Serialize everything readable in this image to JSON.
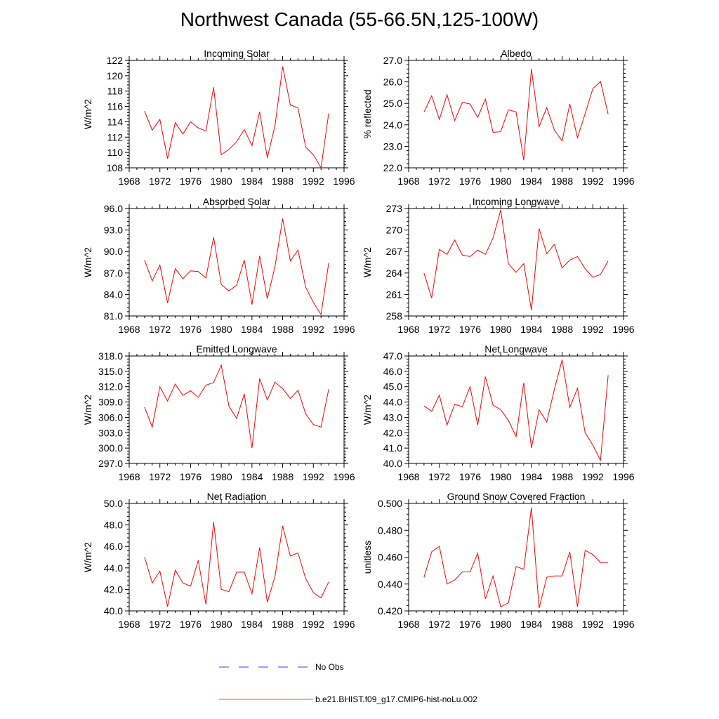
{
  "figure_title": "Northwest Canada (55-66.5N,125-100W)",
  "colors": {
    "model": "#ff0000",
    "obs": "#0000ff"
  },
  "legend": {
    "obs_label": "No Obs",
    "model_label": "b.e21.BHIST.f09_g17.CMIP6-hist-noLu.002"
  },
  "chart_data": [
    {
      "type": "line",
      "title": "Incoming Solar",
      "xlabel": "",
      "ylabel": "W/m^2",
      "xlim": [
        1968,
        1996
      ],
      "ylim": [
        108,
        122
      ],
      "yticks": [
        108,
        110,
        112,
        114,
        116,
        118,
        120,
        122
      ],
      "ytick_labels": [
        "108",
        "110",
        "112",
        "114",
        "116",
        "118",
        "120",
        "122"
      ],
      "xticks": [
        1968,
        1972,
        1976,
        1980,
        1984,
        1988,
        1992,
        1996
      ],
      "xtick_labels": [
        "1968",
        "1972",
        "1976",
        "1980",
        "1984",
        "1988",
        "1992",
        "1996"
      ],
      "x": [
        1970,
        1971,
        1972,
        1973,
        1974,
        1975,
        1976,
        1977,
        1978,
        1979,
        1980,
        1981,
        1982,
        1983,
        1984,
        1985,
        1986,
        1987,
        1988,
        1989,
        1990,
        1991,
        1992,
        1993,
        1994
      ],
      "series": [
        {
          "name": "b.e21.BHIST.f09_g17.CMIP6-hist-noLu.002",
          "values": [
            115.4,
            112.9,
            114.3,
            109.2,
            113.9,
            112.4,
            114.0,
            113.2,
            112.8,
            118.5,
            109.7,
            110.4,
            111.4,
            113.0,
            110.9,
            115.3,
            109.3,
            113.5,
            121.2,
            116.2,
            115.8,
            110.7,
            109.7,
            108.0,
            115.1
          ]
        }
      ]
    },
    {
      "type": "line",
      "title": "Albedo",
      "xlabel": "",
      "ylabel": "% reflected",
      "xlim": [
        1968,
        1996
      ],
      "ylim": [
        22,
        27
      ],
      "yticks": [
        22,
        23,
        24,
        25,
        26,
        27
      ],
      "ytick_labels": [
        "22.0",
        "23.0",
        "24.0",
        "25.0",
        "26.0",
        "27.0"
      ],
      "xticks": [
        1968,
        1972,
        1976,
        1980,
        1984,
        1988,
        1992,
        1996
      ],
      "xtick_labels": [
        "1968",
        "1972",
        "1976",
        "1980",
        "1984",
        "1988",
        "1992",
        "1996"
      ],
      "x": [
        1970,
        1971,
        1972,
        1973,
        1974,
        1975,
        1976,
        1977,
        1978,
        1979,
        1980,
        1981,
        1982,
        1983,
        1984,
        1985,
        1986,
        1987,
        1988,
        1989,
        1990,
        1991,
        1992,
        1993,
        1994
      ],
      "series": [
        {
          "name": "b.e21.BHIST.f09_g17.CMIP6-hist-noLu.002",
          "values": [
            24.6,
            25.35,
            24.25,
            25.4,
            24.2,
            25.05,
            24.97,
            24.35,
            25.2,
            23.65,
            23.68,
            24.7,
            24.6,
            22.35,
            26.6,
            23.92,
            24.8,
            23.75,
            23.25,
            24.97,
            23.4,
            24.52,
            25.68,
            26.02,
            24.5
          ]
        }
      ]
    },
    {
      "type": "line",
      "title": "Absorbed Solar",
      "xlabel": "",
      "ylabel": "W/m^2",
      "xlim": [
        1968,
        1996
      ],
      "ylim": [
        81,
        96
      ],
      "yticks": [
        81,
        84,
        87,
        90,
        93,
        96
      ],
      "ytick_labels": [
        "81.0",
        "84.0",
        "87.0",
        "90.0",
        "93.0",
        "96.0"
      ],
      "xticks": [
        1968,
        1972,
        1976,
        1980,
        1984,
        1988,
        1992,
        1996
      ],
      "xtick_labels": [
        "1968",
        "1972",
        "1976",
        "1980",
        "1984",
        "1988",
        "1992",
        "1996"
      ],
      "x": [
        1970,
        1971,
        1972,
        1973,
        1974,
        1975,
        1976,
        1977,
        1978,
        1979,
        1980,
        1981,
        1982,
        1983,
        1984,
        1985,
        1986,
        1987,
        1988,
        1989,
        1990,
        1991,
        1992,
        1993,
        1994
      ],
      "series": [
        {
          "name": "b.e21.BHIST.f09_g17.CMIP6-hist-noLu.002",
          "values": [
            88.8,
            85.9,
            88.1,
            82.8,
            87.6,
            86.2,
            87.3,
            87.2,
            86.3,
            92.0,
            85.4,
            84.5,
            85.3,
            88.8,
            82.6,
            89.4,
            83.4,
            87.9,
            94.6,
            88.7,
            90.2,
            85.0,
            82.9,
            81.2,
            88.4
          ]
        }
      ]
    },
    {
      "type": "line",
      "title": "Incoming Longwave",
      "xlabel": "",
      "ylabel": "W/m^2",
      "xlim": [
        1968,
        1996
      ],
      "ylim": [
        258,
        273
      ],
      "yticks": [
        258,
        261,
        264,
        267,
        270,
        273
      ],
      "ytick_labels": [
        "258",
        "261",
        "264",
        "267",
        "270",
        "273"
      ],
      "xticks": [
        1968,
        1972,
        1976,
        1980,
        1984,
        1988,
        1992,
        1996
      ],
      "xtick_labels": [
        "1968",
        "1972",
        "1976",
        "1980",
        "1984",
        "1988",
        "1992",
        "1996"
      ],
      "x": [
        1970,
        1971,
        1972,
        1973,
        1974,
        1975,
        1976,
        1977,
        1978,
        1979,
        1980,
        1981,
        1982,
        1983,
        1984,
        1985,
        1986,
        1987,
        1988,
        1989,
        1990,
        1991,
        1992,
        1993,
        1994
      ],
      "series": [
        {
          "name": "b.e21.BHIST.f09_g17.CMIP6-hist-noLu.002",
          "values": [
            264.0,
            260.5,
            267.3,
            266.6,
            268.6,
            266.5,
            266.3,
            267.2,
            266.6,
            268.9,
            272.8,
            265.3,
            264.1,
            265.3,
            258.8,
            270.2,
            266.7,
            268.0,
            264.7,
            265.8,
            266.3,
            264.6,
            263.4,
            263.8,
            265.7
          ]
        }
      ]
    },
    {
      "type": "line",
      "title": "Emitted Longwave",
      "xlabel": "",
      "ylabel": "W/m^2",
      "xlim": [
        1968,
        1996
      ],
      "ylim": [
        297,
        318
      ],
      "yticks": [
        297,
        300,
        303,
        306,
        309,
        312,
        315,
        318
      ],
      "ytick_labels": [
        "297.0",
        "300.0",
        "303.0",
        "306.0",
        "309.0",
        "312.0",
        "315.0",
        "318.0"
      ],
      "xticks": [
        1968,
        1972,
        1976,
        1980,
        1984,
        1988,
        1992,
        1996
      ],
      "xtick_labels": [
        "1968",
        "1972",
        "1976",
        "1980",
        "1984",
        "1988",
        "1992",
        "1996"
      ],
      "x": [
        1970,
        1971,
        1972,
        1973,
        1974,
        1975,
        1976,
        1977,
        1978,
        1979,
        1980,
        1981,
        1982,
        1983,
        1984,
        1985,
        1986,
        1987,
        1988,
        1989,
        1990,
        1991,
        1992,
        1993,
        1994
      ],
      "series": [
        {
          "name": "b.e21.BHIST.f09_g17.CMIP6-hist-noLu.002",
          "values": [
            308.0,
            304.1,
            312.0,
            309.2,
            312.5,
            310.3,
            311.2,
            309.9,
            312.3,
            312.8,
            316.2,
            308.2,
            305.8,
            310.6,
            300.0,
            313.6,
            309.4,
            312.9,
            311.6,
            309.7,
            311.3,
            306.7,
            304.6,
            304.1,
            311.5
          ]
        }
      ]
    },
    {
      "type": "line",
      "title": "Net Longwave",
      "xlabel": "",
      "ylabel": "W/m^2",
      "xlim": [
        1968,
        1996
      ],
      "ylim": [
        40,
        47
      ],
      "yticks": [
        40,
        41,
        42,
        43,
        44,
        45,
        46,
        47
      ],
      "ytick_labels": [
        "40.0",
        "41.0",
        "42.0",
        "43.0",
        "44.0",
        "45.0",
        "46.0",
        "47.0"
      ],
      "xticks": [
        1968,
        1972,
        1976,
        1980,
        1984,
        1988,
        1992,
        1996
      ],
      "xtick_labels": [
        "1968",
        "1972",
        "1976",
        "1980",
        "1984",
        "1988",
        "1992",
        "1996"
      ],
      "x": [
        1970,
        1971,
        1972,
        1973,
        1974,
        1975,
        1976,
        1977,
        1978,
        1979,
        1980,
        1981,
        1982,
        1983,
        1984,
        1985,
        1986,
        1987,
        1988,
        1989,
        1990,
        1991,
        1992,
        1993,
        1994
      ],
      "series": [
        {
          "name": "b.e21.BHIST.f09_g17.CMIP6-hist-noLu.002",
          "values": [
            43.75,
            43.4,
            44.45,
            42.5,
            43.85,
            43.7,
            45.0,
            42.5,
            45.65,
            43.8,
            43.5,
            42.8,
            41.75,
            45.25,
            41.0,
            43.5,
            42.7,
            44.85,
            46.75,
            43.65,
            44.9,
            42.0,
            41.2,
            40.2,
            45.75
          ]
        }
      ]
    },
    {
      "type": "line",
      "title": "Net Radiation",
      "xlabel": "",
      "ylabel": "W/m^2",
      "xlim": [
        1968,
        1996
      ],
      "ylim": [
        40,
        50
      ],
      "yticks": [
        40,
        42,
        44,
        46,
        48,
        50
      ],
      "ytick_labels": [
        "40.0",
        "42.0",
        "44.0",
        "46.0",
        "48.0",
        "50.0"
      ],
      "xticks": [
        1968,
        1972,
        1976,
        1980,
        1984,
        1988,
        1992,
        1996
      ],
      "xtick_labels": [
        "1968",
        "1972",
        "1976",
        "1980",
        "1984",
        "1988",
        "1992",
        "1996"
      ],
      "x": [
        1970,
        1971,
        1972,
        1973,
        1974,
        1975,
        1976,
        1977,
        1978,
        1979,
        1980,
        1981,
        1982,
        1983,
        1984,
        1985,
        1986,
        1987,
        1988,
        1989,
        1990,
        1991,
        1992,
        1993,
        1994
      ],
      "series": [
        {
          "name": "b.e21.BHIST.f09_g17.CMIP6-hist-noLu.002",
          "values": [
            45.0,
            42.6,
            43.7,
            40.4,
            43.8,
            42.6,
            42.3,
            44.7,
            40.6,
            48.3,
            42.0,
            41.8,
            43.6,
            43.6,
            41.6,
            45.9,
            40.8,
            43.2,
            47.9,
            45.1,
            45.4,
            43.0,
            41.7,
            41.2,
            42.7
          ]
        }
      ]
    },
    {
      "type": "line",
      "title": "Ground Snow Covered Fraction",
      "xlabel": "",
      "ylabel": "unitless",
      "xlim": [
        1968,
        1996
      ],
      "ylim": [
        0.42,
        0.5
      ],
      "yticks": [
        0.42,
        0.44,
        0.46,
        0.48,
        0.5
      ],
      "ytick_labels": [
        "0.420",
        "0.440",
        "0.460",
        "0.480",
        "0.500"
      ],
      "xticks": [
        1968,
        1972,
        1976,
        1980,
        1984,
        1988,
        1992,
        1996
      ],
      "xtick_labels": [
        "1968",
        "1972",
        "1976",
        "1980",
        "1984",
        "1988",
        "1992",
        "1996"
      ],
      "x": [
        1970,
        1971,
        1972,
        1973,
        1974,
        1975,
        1976,
        1977,
        1978,
        1979,
        1980,
        1981,
        1982,
        1983,
        1984,
        1985,
        1986,
        1987,
        1988,
        1989,
        1990,
        1991,
        1992,
        1993,
        1994
      ],
      "series": [
        {
          "name": "b.e21.BHIST.f09_g17.CMIP6-hist-noLu.002",
          "values": [
            0.445,
            0.464,
            0.468,
            0.44,
            0.443,
            0.449,
            0.449,
            0.463,
            0.429,
            0.446,
            0.423,
            0.426,
            0.453,
            0.451,
            0.497,
            0.422,
            0.445,
            0.446,
            0.446,
            0.464,
            0.423,
            0.465,
            0.462,
            0.456,
            0.456
          ]
        }
      ]
    }
  ]
}
